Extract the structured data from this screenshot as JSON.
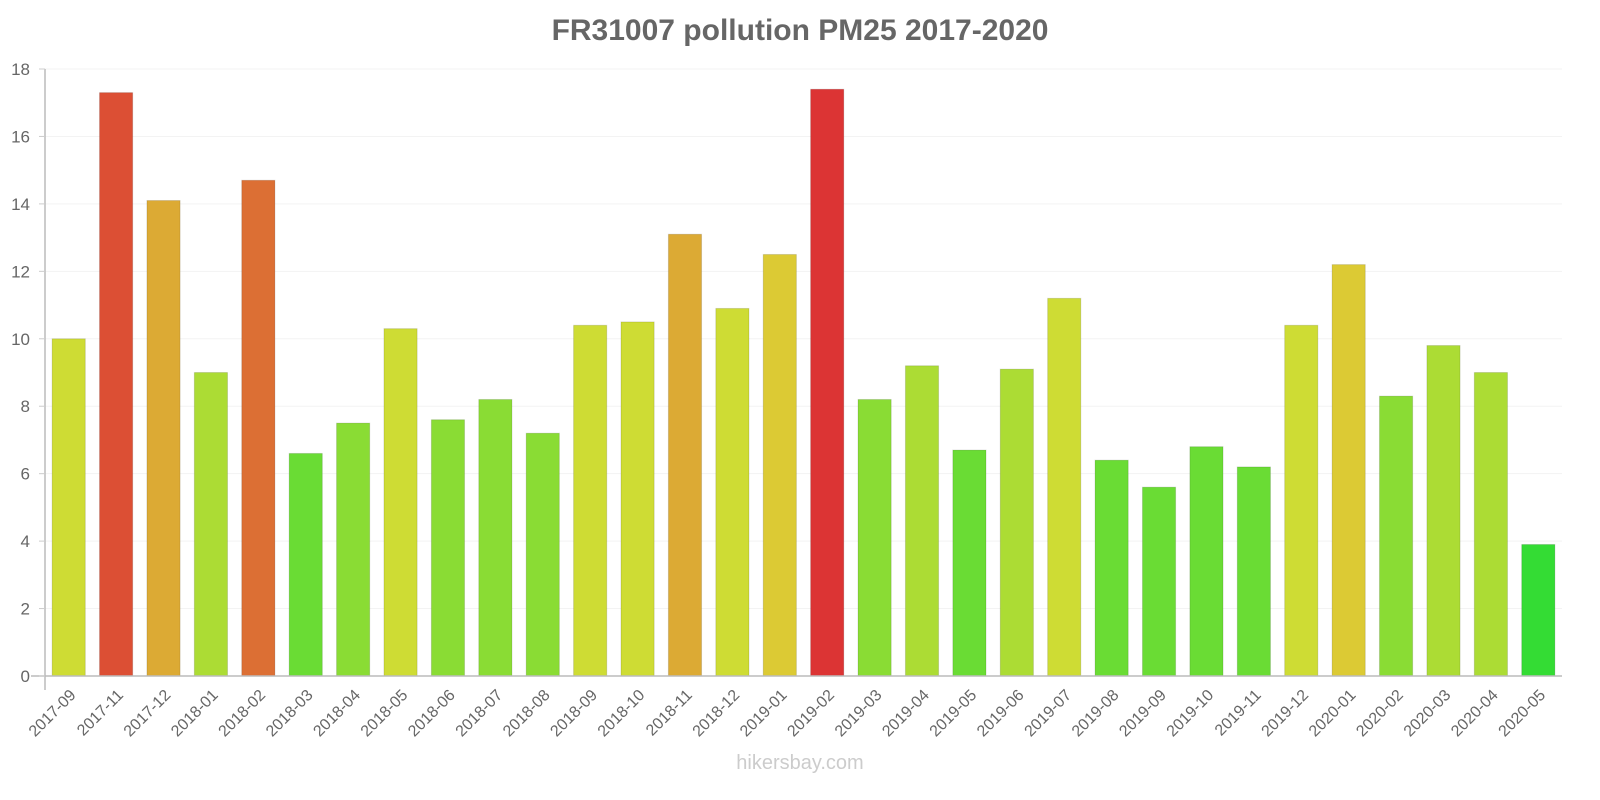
{
  "title": "FR31007 pollution PM25 2017-2020",
  "footer": "hikersbay.com",
  "chart_data": {
    "type": "bar",
    "title": "FR31007 pollution PM25 2017-2020",
    "xlabel": "",
    "ylabel": "",
    "ylim": [
      0,
      18
    ],
    "yticks": [
      0,
      2,
      4,
      6,
      8,
      10,
      12,
      14,
      16,
      18
    ],
    "grid": true,
    "legend": null,
    "categories": [
      "2017-09",
      "2017-11",
      "2017-12",
      "2018-01",
      "2018-02",
      "2018-03",
      "2018-04",
      "2018-05",
      "2018-06",
      "2018-07",
      "2018-08",
      "2018-09",
      "2018-10",
      "2018-11",
      "2018-12",
      "2019-01",
      "2019-02",
      "2019-03",
      "2019-04",
      "2019-05",
      "2019-06",
      "2019-07",
      "2019-08",
      "2019-09",
      "2019-10",
      "2019-11",
      "2019-12",
      "2020-01",
      "2020-02",
      "2020-03",
      "2020-04",
      "2020-05"
    ],
    "values": [
      10.0,
      17.3,
      14.1,
      9.0,
      14.7,
      6.6,
      7.5,
      10.3,
      7.6,
      8.2,
      7.2,
      10.4,
      10.5,
      13.1,
      10.9,
      12.5,
      17.4,
      8.2,
      9.2,
      6.7,
      9.1,
      11.2,
      6.4,
      5.6,
      6.8,
      6.2,
      10.4,
      12.2,
      8.3,
      9.8,
      9.0,
      3.9
    ],
    "colors": [
      "#cedc34",
      "#dc4f34",
      "#dcaa34",
      "#acdc34",
      "#dc6f34",
      "#6adc34",
      "#8adc34",
      "#cedc34",
      "#8adc34",
      "#8adc34",
      "#8adc34",
      "#cedc34",
      "#cedc34",
      "#dcaa34",
      "#cedc34",
      "#dcca34",
      "#dc3434",
      "#8adc34",
      "#acdc34",
      "#6adc34",
      "#acdc34",
      "#cedc34",
      "#6adc34",
      "#6adc34",
      "#6adc34",
      "#6adc34",
      "#cedc34",
      "#dcca34",
      "#8adc34",
      "#acdc34",
      "#acdc34",
      "#34dc34"
    ]
  }
}
